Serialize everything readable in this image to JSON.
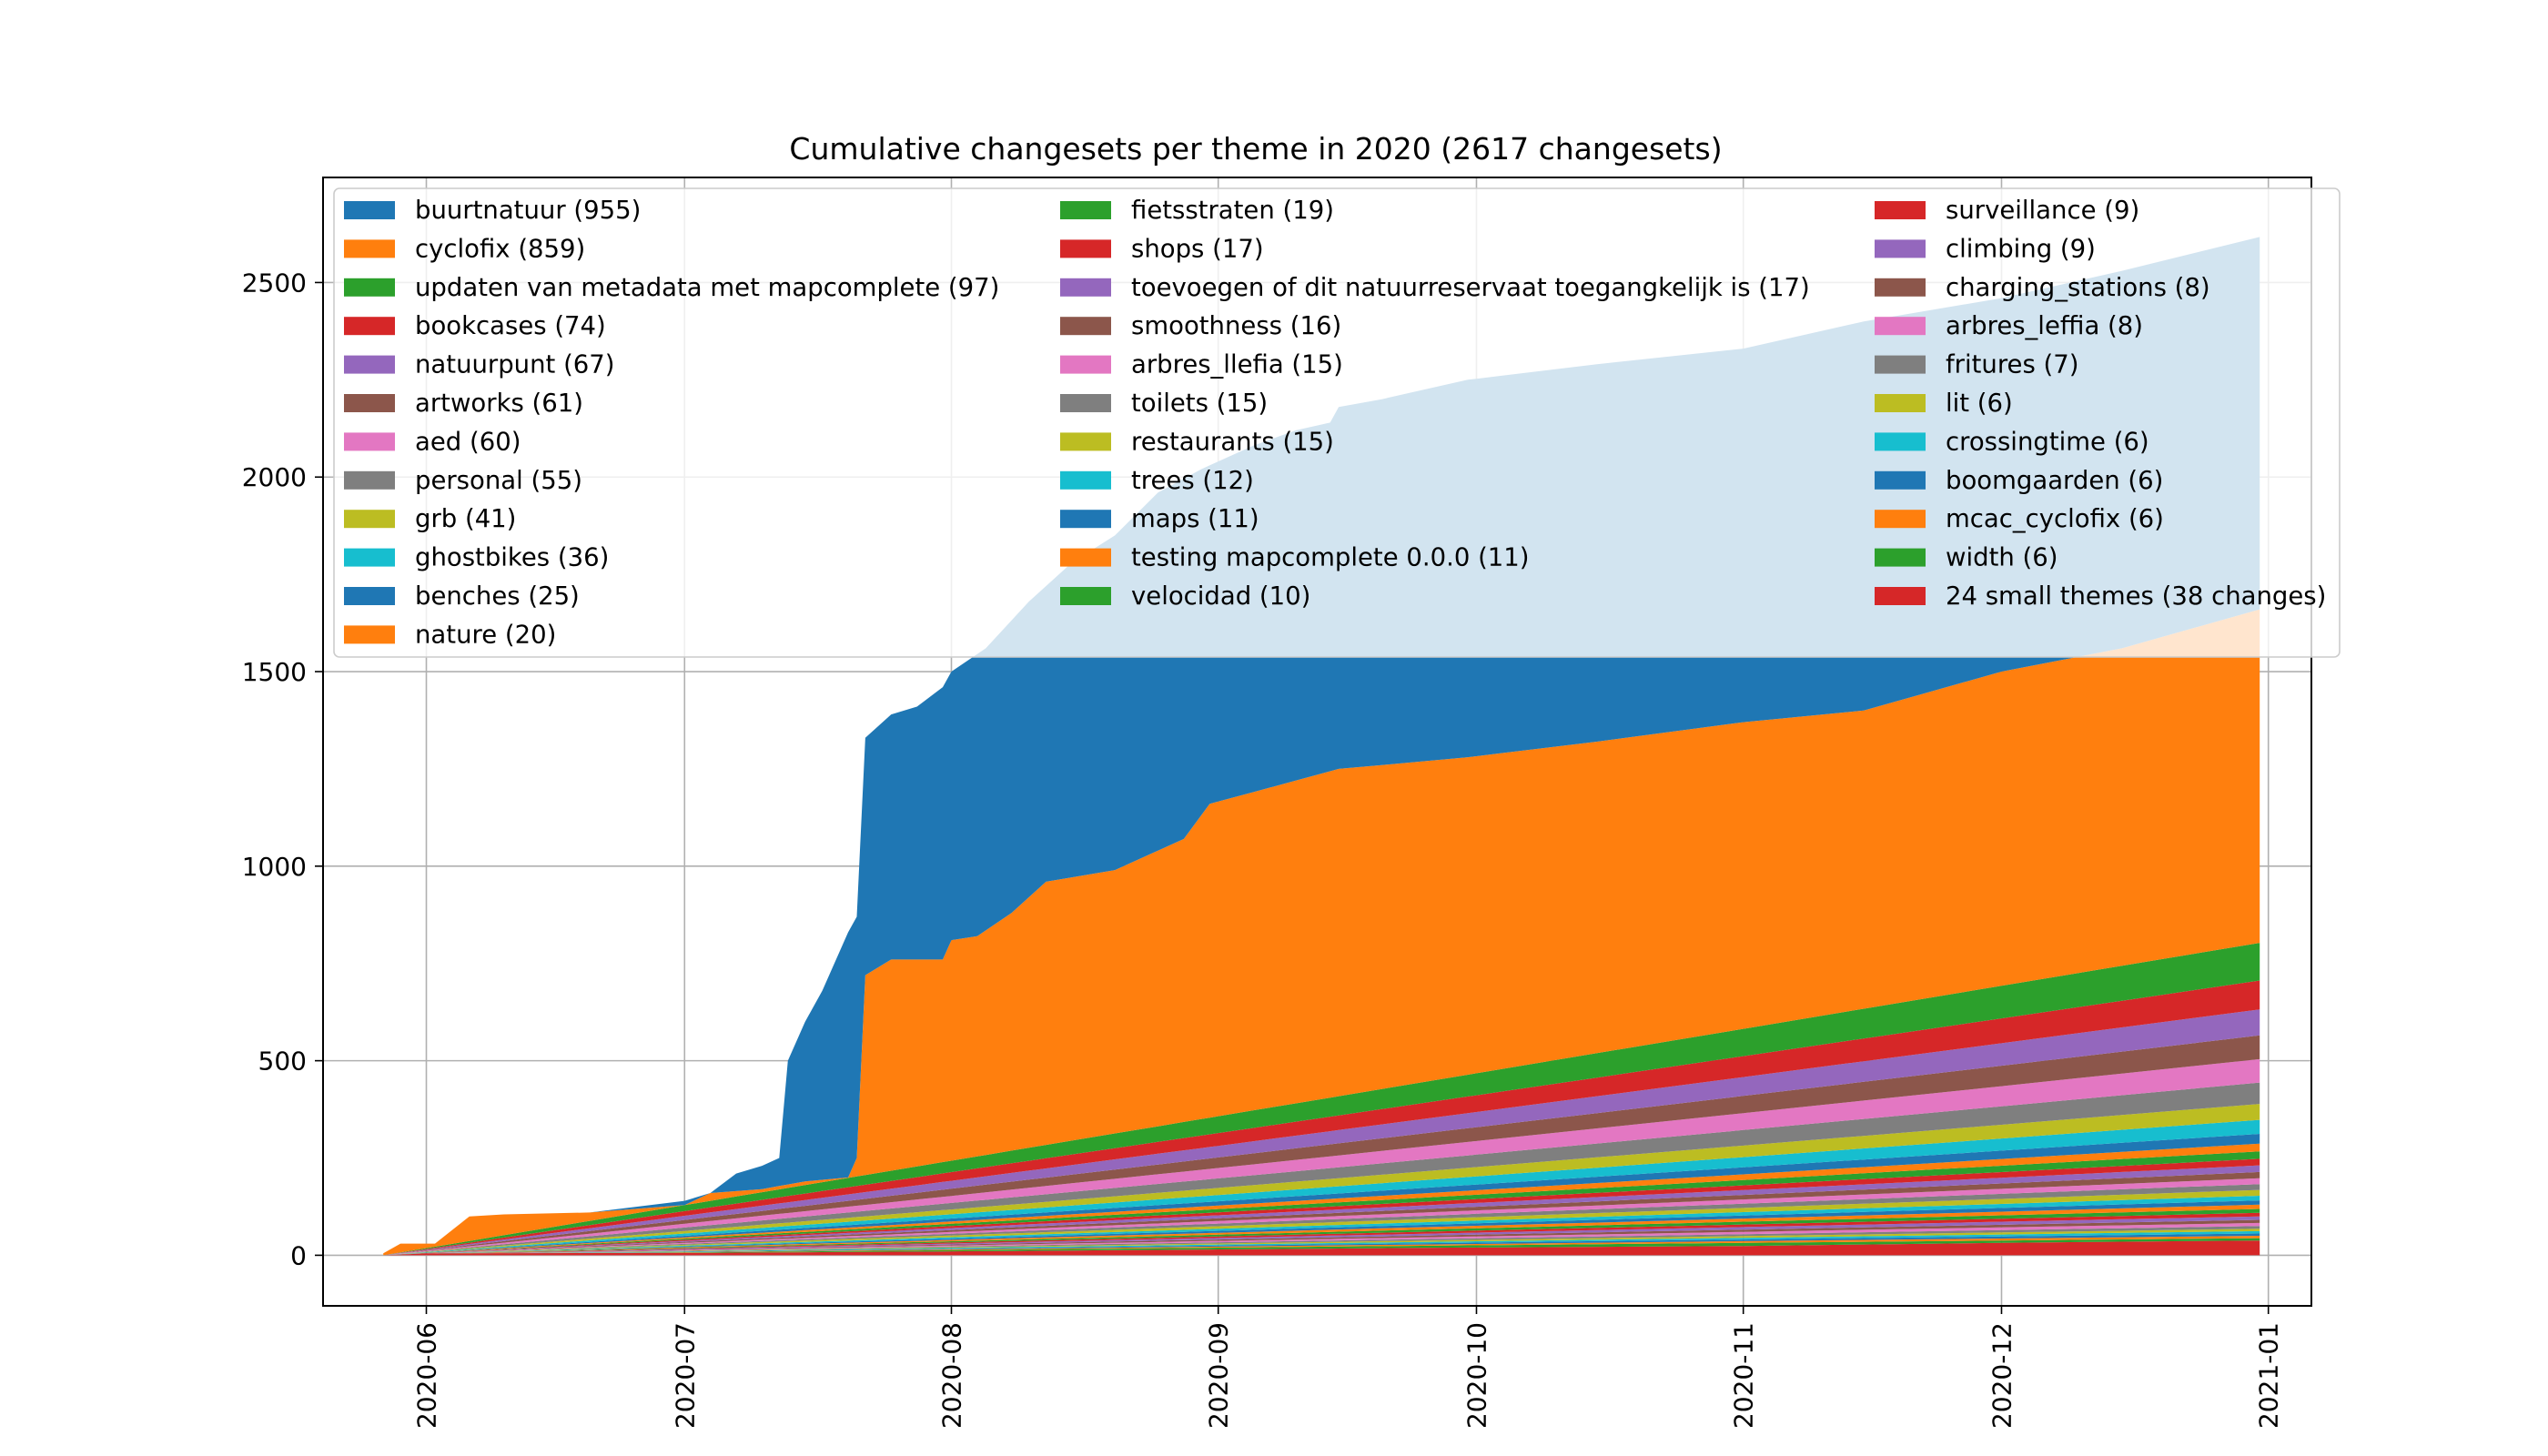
{
  "chart_data": {
    "type": "area",
    "title": "Cumulative changesets per theme in 2020 (2617 changesets)",
    "xlabel": "",
    "ylabel": "",
    "x_range": [
      "2020-05-20",
      "2021-01-06"
    ],
    "ylim": [
      -130,
      2770
    ],
    "x_ticks": [
      "2020-06",
      "2020-07",
      "2020-08",
      "2020-09",
      "2020-10",
      "2020-11",
      "2020-12",
      "2021-01"
    ],
    "y_ticks": [
      "0",
      "500",
      "1000",
      "1500",
      "2000",
      "2500"
    ],
    "grid": true,
    "legend_placement": "top, 3 columns",
    "colors": [
      "#1f77b4",
      "#ff7f0e",
      "#2ca02c",
      "#d62728",
      "#9467bd",
      "#8c564b",
      "#e377c2",
      "#7f7f7f",
      "#bcbd22",
      "#17becf"
    ],
    "legend": [
      "buurtnatuur (955)",
      "cyclofix (859)",
      "updaten van metadata met mapcomplete (97)",
      "bookcases (74)",
      "natuurpunt (67)",
      "artworks (61)",
      "aed (60)",
      "personal (55)",
      "grb (41)",
      "ghostbikes (36)",
      "benches (25)",
      "nature (20)",
      "fietsstraten (19)",
      "shops (17)",
      "toevoegen of dit natuurreservaat toegangkelijk is (17)",
      "smoothness (16)",
      "arbres_llefia (15)",
      "toilets (15)",
      "restaurants (15)",
      "trees (12)",
      "maps (11)",
      "testing mapcomplete 0.0.0 (11)",
      "velocidad (10)",
      "surveillance (9)",
      "climbing (9)",
      "charging_stations (8)",
      "arbres_leffia (8)",
      "fritures (7)",
      "lit (6)",
      "crossingtime (6)",
      "boomgaarden (6)",
      "mcac_cyclofix (6)",
      "width (6)",
      "24 small themes (38 changes)"
    ],
    "stack_bottom_to_top": [
      "24 small themes (38 changes)",
      "width (6)",
      "mcac_cyclofix (6)",
      "boomgaarden (6)",
      "crossingtime (6)",
      "lit (6)",
      "fritures (7)",
      "arbres_leffia (8)",
      "charging_stations (8)",
      "climbing (9)",
      "surveillance (9)",
      "velocidad (10)",
      "testing mapcomplete 0.0.0 (11)",
      "maps (11)",
      "trees (12)",
      "restaurants (15)",
      "toilets (15)",
      "arbres_llefia (15)",
      "smoothness (16)",
      "toevoegen of dit natuurreservaat toegangkelijk is (17)",
      "shops (17)",
      "fietsstraten (19)",
      "nature (20)",
      "benches (25)",
      "ghostbikes (36)",
      "grb (41)",
      "personal (55)",
      "aed (60)",
      "artworks (61)",
      "natuurpunt (67)",
      "bookcases (74)",
      "updaten van metadata met mapcomplete (97)",
      "cyclofix (859)",
      "buurtnatuur (955)"
    ],
    "boundaries_note": "approximate cumulative stacked totals read from the chart; each series is drawn between consecutive boundaries",
    "boundary_lines": [
      {
        "series": "24 small themes (38 changes)",
        "points": [
          [
            "2020-05-27",
            0
          ],
          [
            "2020-06-01",
            5
          ],
          [
            "2020-07-01",
            6
          ],
          [
            "2020-08-01",
            10
          ],
          [
            "2020-09-01",
            15
          ],
          [
            "2020-10-01",
            20
          ],
          [
            "2020-11-01",
            24
          ],
          [
            "2020-12-01",
            32
          ],
          [
            "2020-12-31",
            38
          ]
        ]
      },
      {
        "series": "width (6)",
        "points": [
          [
            "2020-05-27",
            0
          ],
          [
            "2020-12-31",
            44
          ]
        ]
      },
      {
        "series": "mcac_cyclofix (6)",
        "points": [
          [
            "2020-05-27",
            0
          ],
          [
            "2020-12-31",
            50
          ]
        ]
      },
      {
        "series": "boomgaarden (6)",
        "points": [
          [
            "2020-05-27",
            0
          ],
          [
            "2020-12-31",
            56
          ]
        ]
      },
      {
        "series": "crossingtime (6)",
        "points": [
          [
            "2020-05-27",
            0
          ],
          [
            "2020-12-31",
            62
          ]
        ]
      },
      {
        "series": "lit (6)",
        "points": [
          [
            "2020-05-27",
            0
          ],
          [
            "2020-12-31",
            68
          ]
        ]
      },
      {
        "series": "fritures (7)",
        "points": [
          [
            "2020-05-27",
            0
          ],
          [
            "2020-12-31",
            75
          ]
        ]
      },
      {
        "series": "arbres_leffia (8)",
        "points": [
          [
            "2020-05-27",
            0
          ],
          [
            "2020-12-31",
            83
          ]
        ]
      },
      {
        "series": "charging_stations (8)",
        "points": [
          [
            "2020-05-27",
            0
          ],
          [
            "2020-12-31",
            91
          ]
        ]
      },
      {
        "series": "climbing (9)",
        "points": [
          [
            "2020-05-27",
            0
          ],
          [
            "2020-12-31",
            100
          ]
        ]
      },
      {
        "series": "surveillance (9)",
        "points": [
          [
            "2020-05-27",
            0
          ],
          [
            "2020-12-31",
            109
          ]
        ]
      },
      {
        "series": "velocidad (10)",
        "points": [
          [
            "2020-05-27",
            0
          ],
          [
            "2020-12-31",
            119
          ]
        ]
      },
      {
        "series": "testing mapcomplete 0.0.0 (11)",
        "points": [
          [
            "2020-05-27",
            0
          ],
          [
            "2020-12-31",
            130
          ]
        ]
      },
      {
        "series": "maps (11)",
        "points": [
          [
            "2020-05-27",
            0
          ],
          [
            "2020-12-31",
            141
          ]
        ]
      },
      {
        "series": "trees (12)",
        "points": [
          [
            "2020-05-27",
            0
          ],
          [
            "2020-12-31",
            153
          ]
        ]
      },
      {
        "series": "restaurants (15)",
        "points": [
          [
            "2020-05-27",
            0
          ],
          [
            "2020-12-31",
            168
          ]
        ]
      },
      {
        "series": "toilets (15)",
        "points": [
          [
            "2020-05-27",
            0
          ],
          [
            "2020-12-31",
            183
          ]
        ]
      },
      {
        "series": "arbres_llefia (15)",
        "points": [
          [
            "2020-05-27",
            0
          ],
          [
            "2020-12-31",
            198
          ]
        ]
      },
      {
        "series": "smoothness (16)",
        "points": [
          [
            "2020-05-27",
            0
          ],
          [
            "2020-12-31",
            214
          ]
        ]
      },
      {
        "series": "toevoegen of dit natuurreservaat toegangkelijk is (17)",
        "points": [
          [
            "2020-05-27",
            0
          ],
          [
            "2020-12-31",
            231
          ]
        ]
      },
      {
        "series": "shops (17)",
        "points": [
          [
            "2020-05-27",
            0
          ],
          [
            "2020-12-31",
            248
          ]
        ]
      },
      {
        "series": "fietsstraten (19)",
        "points": [
          [
            "2020-05-27",
            0
          ],
          [
            "2020-12-31",
            267
          ]
        ]
      },
      {
        "series": "nature (20)",
        "points": [
          [
            "2020-05-27",
            0
          ],
          [
            "2020-12-31",
            287
          ]
        ]
      },
      {
        "series": "benches (25)",
        "points": [
          [
            "2020-05-27",
            0
          ],
          [
            "2020-12-31",
            312
          ]
        ]
      },
      {
        "series": "ghostbikes (36)",
        "points": [
          [
            "2020-05-27",
            0
          ],
          [
            "2020-12-31",
            348
          ]
        ]
      },
      {
        "series": "grb (41)",
        "points": [
          [
            "2020-05-27",
            0
          ],
          [
            "2020-12-31",
            389
          ]
        ]
      },
      {
        "series": "personal (55)",
        "points": [
          [
            "2020-05-27",
            0
          ],
          [
            "2020-12-31",
            444
          ]
        ]
      },
      {
        "series": "aed (60)",
        "points": [
          [
            "2020-05-27",
            0
          ],
          [
            "2020-12-31",
            504
          ]
        ]
      },
      {
        "series": "artworks (61)",
        "points": [
          [
            "2020-05-27",
            0
          ],
          [
            "2020-12-31",
            565
          ]
        ]
      },
      {
        "series": "natuurpunt (67)",
        "points": [
          [
            "2020-05-27",
            0
          ],
          [
            "2020-12-31",
            632
          ]
        ]
      },
      {
        "series": "bookcases (74)",
        "points": [
          [
            "2020-05-27",
            0
          ],
          [
            "2020-12-31",
            706
          ]
        ]
      },
      {
        "series": "updaten van metadata met mapcomplete (97)",
        "points": [
          [
            "2020-05-27",
            0
          ],
          [
            "2020-12-31",
            803
          ]
        ]
      },
      {
        "series": "cyclofix (859)",
        "points": [
          [
            "2020-05-27",
            5
          ],
          [
            "2020-05-29",
            30
          ],
          [
            "2020-06-02",
            30
          ],
          [
            "2020-06-06",
            100
          ],
          [
            "2020-06-10",
            105
          ],
          [
            "2020-06-20",
            110
          ],
          [
            "2020-07-01",
            125
          ],
          [
            "2020-07-04",
            160
          ],
          [
            "2020-07-10",
            170
          ],
          [
            "2020-07-15",
            190
          ],
          [
            "2020-07-20",
            200
          ],
          [
            "2020-07-21",
            250
          ],
          [
            "2020-07-22",
            720
          ],
          [
            "2020-07-25",
            760
          ],
          [
            "2020-07-31",
            760
          ],
          [
            "2020-08-01",
            810
          ],
          [
            "2020-08-04",
            820
          ],
          [
            "2020-08-08",
            880
          ],
          [
            "2020-08-12",
            960
          ],
          [
            "2020-08-20",
            990
          ],
          [
            "2020-08-25",
            1040
          ],
          [
            "2020-08-28",
            1070
          ],
          [
            "2020-08-31",
            1160
          ],
          [
            "2020-09-05",
            1190
          ],
          [
            "2020-09-15",
            1250
          ],
          [
            "2020-09-30",
            1280
          ],
          [
            "2020-10-15",
            1320
          ],
          [
            "2020-11-01",
            1370
          ],
          [
            "2020-11-15",
            1400
          ],
          [
            "2020-12-01",
            1500
          ],
          [
            "2020-12-15",
            1560
          ],
          [
            "2020-12-31",
            1660
          ]
        ]
      },
      {
        "series": "buurtnatuur (955)",
        "points": [
          [
            "2020-05-27",
            5
          ],
          [
            "2020-05-29",
            30
          ],
          [
            "2020-06-02",
            30
          ],
          [
            "2020-06-06",
            100
          ],
          [
            "2020-06-10",
            105
          ],
          [
            "2020-06-20",
            110
          ],
          [
            "2020-07-01",
            140
          ],
          [
            "2020-07-04",
            160
          ],
          [
            "2020-07-07",
            210
          ],
          [
            "2020-07-10",
            230
          ],
          [
            "2020-07-12",
            250
          ],
          [
            "2020-07-13",
            500
          ],
          [
            "2020-07-15",
            600
          ],
          [
            "2020-07-17",
            680
          ],
          [
            "2020-07-20",
            830
          ],
          [
            "2020-07-21",
            870
          ],
          [
            "2020-07-22",
            1330
          ],
          [
            "2020-07-25",
            1390
          ],
          [
            "2020-07-28",
            1410
          ],
          [
            "2020-07-31",
            1460
          ],
          [
            "2020-08-01",
            1500
          ],
          [
            "2020-08-05",
            1560
          ],
          [
            "2020-08-10",
            1680
          ],
          [
            "2020-08-15",
            1780
          ],
          [
            "2020-08-20",
            1850
          ],
          [
            "2020-08-25",
            1960
          ],
          [
            "2020-08-30",
            2020
          ],
          [
            "2020-09-05",
            2080
          ],
          [
            "2020-09-10",
            2120
          ],
          [
            "2020-09-14",
            2140
          ],
          [
            "2020-09-15",
            2180
          ],
          [
            "2020-09-20",
            2200
          ],
          [
            "2020-09-30",
            2250
          ],
          [
            "2020-10-15",
            2290
          ],
          [
            "2020-11-01",
            2330
          ],
          [
            "2020-11-15",
            2400
          ],
          [
            "2020-12-01",
            2460
          ],
          [
            "2020-12-15",
            2530
          ],
          [
            "2020-12-31",
            2617
          ]
        ]
      }
    ]
  }
}
